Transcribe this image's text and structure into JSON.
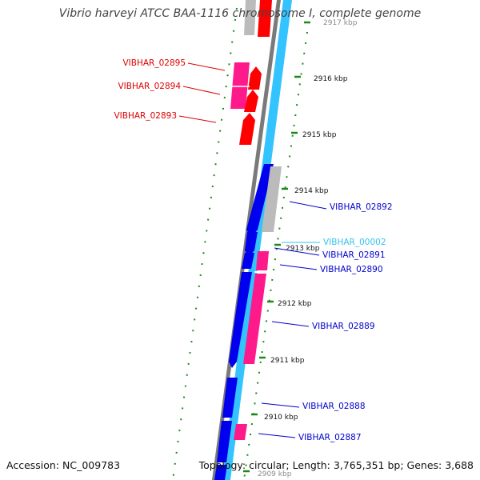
{
  "title": "Vibrio harveyi ATCC BAA-1116 chromosome I, complete genome",
  "footer": {
    "accession": "Accession: NC_009783",
    "summary": "Topology: circular; Length: 3,765,351 bp; Genes: 3,688"
  },
  "colors": {
    "forward_cds": "#ff0000",
    "reverse_cds": "#0000ee",
    "forward_track": "#33c3ff",
    "backbone": "#777777",
    "rna": "#ff1a8c",
    "other": "#bbbbbb",
    "tick": "#1a8a1a"
  },
  "ticks": [
    {
      "label": "2917 kbp"
    },
    {
      "label": "2916 kbp"
    },
    {
      "label": "2915 kbp"
    },
    {
      "label": "2914 kbp"
    },
    {
      "label": "2913 kbp"
    },
    {
      "label": "2912 kbp"
    },
    {
      "label": "2911 kbp"
    },
    {
      "label": "2910 kbp"
    },
    {
      "label": "2909 kbp"
    }
  ],
  "forward_labels": [
    {
      "name": "VIBHAR_02895",
      "color": "#dd0000"
    },
    {
      "name": "VIBHAR_02894",
      "color": "#dd0000"
    },
    {
      "name": "VIBHAR_02893",
      "color": "#dd0000"
    }
  ],
  "reverse_labels": [
    {
      "name": "VIBHAR_02892",
      "color": "#0000cc"
    },
    {
      "name": "VIBHAR_00002",
      "color": "#33c3ee"
    },
    {
      "name": "VIBHAR_02891",
      "color": "#0000cc"
    },
    {
      "name": "VIBHAR_02890",
      "color": "#0000cc"
    },
    {
      "name": "VIBHAR_02889",
      "color": "#0000cc"
    },
    {
      "name": "VIBHAR_02888",
      "color": "#0000cc"
    },
    {
      "name": "VIBHAR_02887",
      "color": "#0000cc"
    }
  ]
}
